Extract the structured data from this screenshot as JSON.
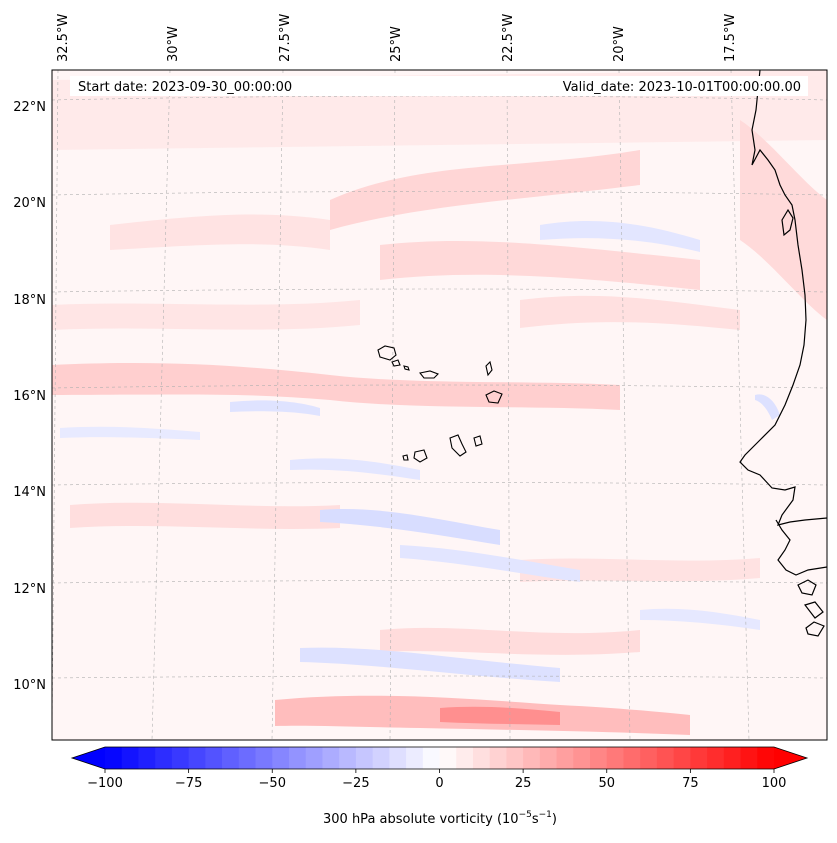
{
  "header": {
    "start_date": "Start date: 2023-09-30_00:00:00",
    "valid_date": "Valid_date: 2023-10-01T00:00:00.00"
  },
  "map": {
    "lon_labels": [
      "32.5°W",
      "30°W",
      "27.5°W",
      "25°W",
      "22.5°W",
      "20°W",
      "17.5°W"
    ],
    "lat_labels": [
      "22°N",
      "20°N",
      "18°N",
      "16°N",
      "14°N",
      "12°N",
      "10°N"
    ]
  },
  "colorbar": {
    "tick_labels": [
      "−100",
      "−75",
      "−50",
      "−25",
      "0",
      "25",
      "50",
      "75",
      "100"
    ],
    "label_text": "300 hPa absolute vorticity (10",
    "label_exp1": "−5",
    "label_mid": "s",
    "label_exp2": "−1",
    "label_close": ")",
    "min": -100,
    "max": 100,
    "low_color": "#0000ff",
    "mid_color": "#ffffff",
    "high_color": "#ff0000"
  },
  "colors": {
    "coastline": "#000000",
    "gridline": "#b0b0b0",
    "ocean_background": "#fff6f6"
  }
}
